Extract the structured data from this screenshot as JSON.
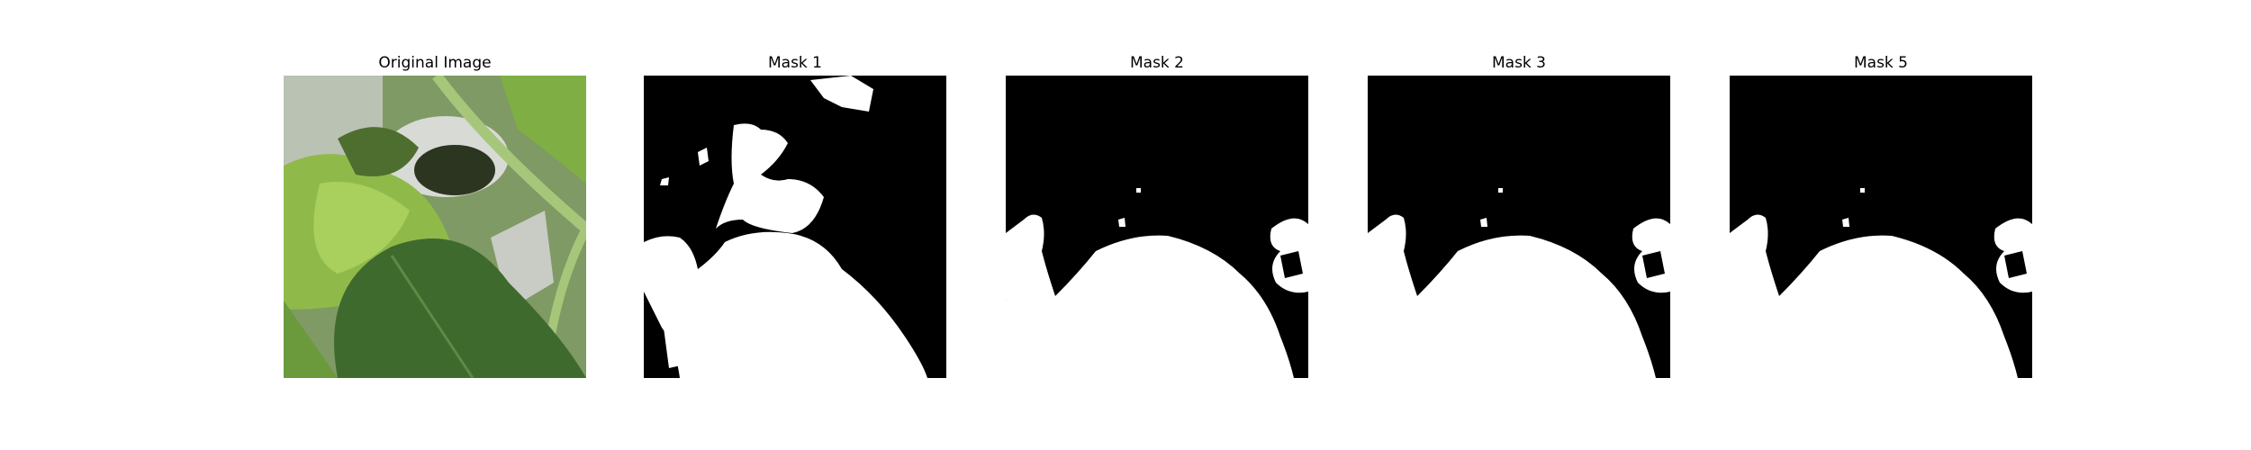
{
  "figure": {
    "panels": [
      {
        "title": "Original Image",
        "kind": "photo",
        "content": "close-up of green leafy plants (kale and broad leaf) growing around a white pipe"
      },
      {
        "title": "Mask 1",
        "kind": "mask"
      },
      {
        "title": "Mask 2",
        "kind": "mask"
      },
      {
        "title": "Mask 3",
        "kind": "mask"
      },
      {
        "title": "Mask 5",
        "kind": "mask"
      }
    ],
    "colors": {
      "mask_foreground": "#ffffff",
      "mask_background": "#000000",
      "page_background": "#ffffff"
    }
  }
}
